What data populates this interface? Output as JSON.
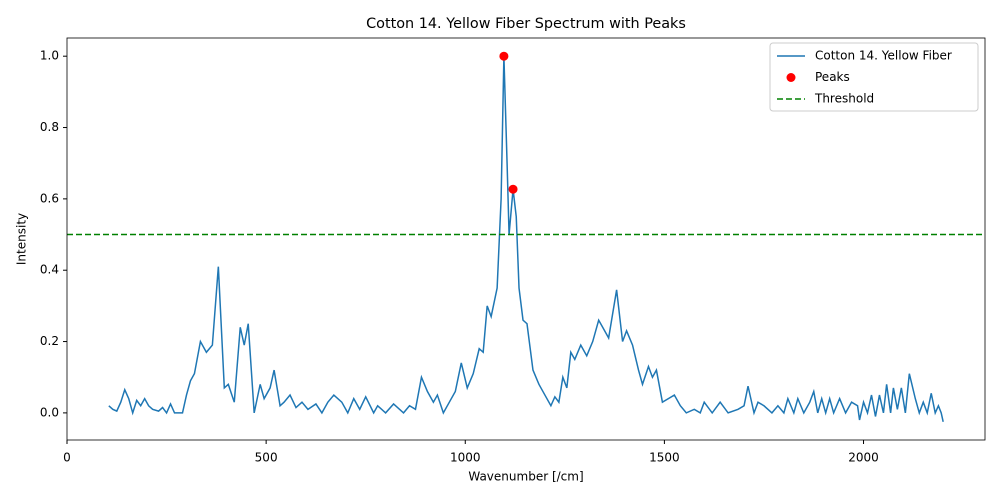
{
  "chart_data": {
    "type": "line",
    "title": "Cotton 14. Yellow Fiber Spectrum with Peaks",
    "x_label": "Wavenumber [/cm]",
    "y_label": "Intensity",
    "xlim": [
      0,
      2305
    ],
    "ylim": [
      -0.076,
      1.051
    ],
    "xticks": [
      0,
      500,
      1000,
      1500,
      2000
    ],
    "yticks": [
      {
        "value": 0,
        "label": "0.0"
      },
      {
        "value": 0.2,
        "label": "0.2"
      },
      {
        "value": 0.4,
        "label": "0.4"
      },
      {
        "value": 0.6,
        "label": "0.6"
      },
      {
        "value": 0.8,
        "label": "0.8"
      },
      {
        "value": 1.0,
        "label": "1.0"
      }
    ],
    "legend": "upper right",
    "series": [
      {
        "name": "Cotton 14. Yellow Fiber",
        "type": "line",
        "color": "#1f77b4",
        "x": [
          105,
          115,
          125,
          135,
          145,
          155,
          165,
          175,
          185,
          195,
          205,
          215,
          230,
          240,
          250,
          260,
          270,
          290,
          300,
          310,
          320,
          335,
          350,
          365,
          380,
          395,
          405,
          420,
          435,
          445,
          455,
          470,
          485,
          495,
          510,
          520,
          535,
          545,
          560,
          575,
          590,
          605,
          625,
          640,
          655,
          670,
          690,
          705,
          720,
          735,
          750,
          770,
          780,
          800,
          820,
          845,
          860,
          875,
          890,
          905,
          920,
          930,
          945,
          960,
          975,
          990,
          1005,
          1020,
          1035,
          1045,
          1055,
          1065,
          1080,
          1090,
          1097,
          1105,
          1110,
          1120,
          1128,
          1135,
          1145,
          1155,
          1170,
          1185,
          1200,
          1215,
          1225,
          1235,
          1245,
          1255,
          1265,
          1275,
          1290,
          1305,
          1320,
          1335,
          1345,
          1360,
          1380,
          1395,
          1405,
          1420,
          1435,
          1445,
          1460,
          1470,
          1480,
          1495,
          1510,
          1525,
          1540,
          1555,
          1575,
          1590,
          1600,
          1620,
          1640,
          1660,
          1685,
          1700,
          1710,
          1725,
          1735,
          1750,
          1770,
          1785,
          1800,
          1810,
          1825,
          1835,
          1850,
          1865,
          1875,
          1885,
          1895,
          1905,
          1915,
          1925,
          1940,
          1955,
          1970,
          1985,
          1990,
          2000,
          2010,
          2020,
          2030,
          2040,
          2050,
          2058,
          2068,
          2075,
          2085,
          2095,
          2105,
          2115,
          2130,
          2140,
          2150,
          2160,
          2170,
          2180,
          2188,
          2195,
          2200
        ],
        "values": [
          0.02,
          0.01,
          0.005,
          0.03,
          0.065,
          0.04,
          0.0,
          0.035,
          0.02,
          0.04,
          0.02,
          0.01,
          0.005,
          0.015,
          0.0,
          0.025,
          0.0,
          0.0,
          0.05,
          0.09,
          0.11,
          0.2,
          0.17,
          0.19,
          0.41,
          0.07,
          0.08,
          0.03,
          0.24,
          0.19,
          0.25,
          0.0,
          0.08,
          0.04,
          0.07,
          0.12,
          0.02,
          0.03,
          0.05,
          0.015,
          0.03,
          0.01,
          0.025,
          0.0,
          0.03,
          0.05,
          0.03,
          0.0,
          0.04,
          0.01,
          0.045,
          0.0,
          0.02,
          0.0,
          0.025,
          0.0,
          0.02,
          0.01,
          0.1,
          0.06,
          0.03,
          0.05,
          0.0,
          0.03,
          0.06,
          0.14,
          0.07,
          0.11,
          0.18,
          0.17,
          0.3,
          0.27,
          0.35,
          0.6,
          1.0,
          0.7,
          0.5,
          0.627,
          0.55,
          0.35,
          0.26,
          0.25,
          0.12,
          0.08,
          0.05,
          0.02,
          0.045,
          0.03,
          0.1,
          0.07,
          0.17,
          0.15,
          0.19,
          0.16,
          0.2,
          0.26,
          0.24,
          0.21,
          0.345,
          0.2,
          0.23,
          0.19,
          0.12,
          0.08,
          0.13,
          0.1,
          0.12,
          0.03,
          0.04,
          0.05,
          0.02,
          0.0,
          0.01,
          0.0,
          0.03,
          0.0,
          0.03,
          0.0,
          0.01,
          0.02,
          0.075,
          0.0,
          0.03,
          0.02,
          0.0,
          0.02,
          0.0,
          0.04,
          0.0,
          0.04,
          0.0,
          0.03,
          0.06,
          0.0,
          0.04,
          0.0,
          0.04,
          0.0,
          0.04,
          0.0,
          0.03,
          0.02,
          -0.02,
          0.03,
          0.0,
          0.05,
          -0.01,
          0.05,
          0.0,
          0.08,
          0.0,
          0.07,
          0.01,
          0.07,
          0.0,
          0.11,
          0.04,
          0.0,
          0.03,
          0.0,
          0.055,
          0.0,
          0.02,
          0.0,
          -0.025
        ]
      },
      {
        "name": "Peaks",
        "type": "scatter",
        "color": "#ff0000",
        "x": [
          1097,
          1120
        ],
        "values": [
          1.0,
          0.627
        ]
      },
      {
        "name": "Threshold",
        "type": "hline",
        "color": "#008000",
        "values": [
          0.5
        ]
      }
    ]
  }
}
